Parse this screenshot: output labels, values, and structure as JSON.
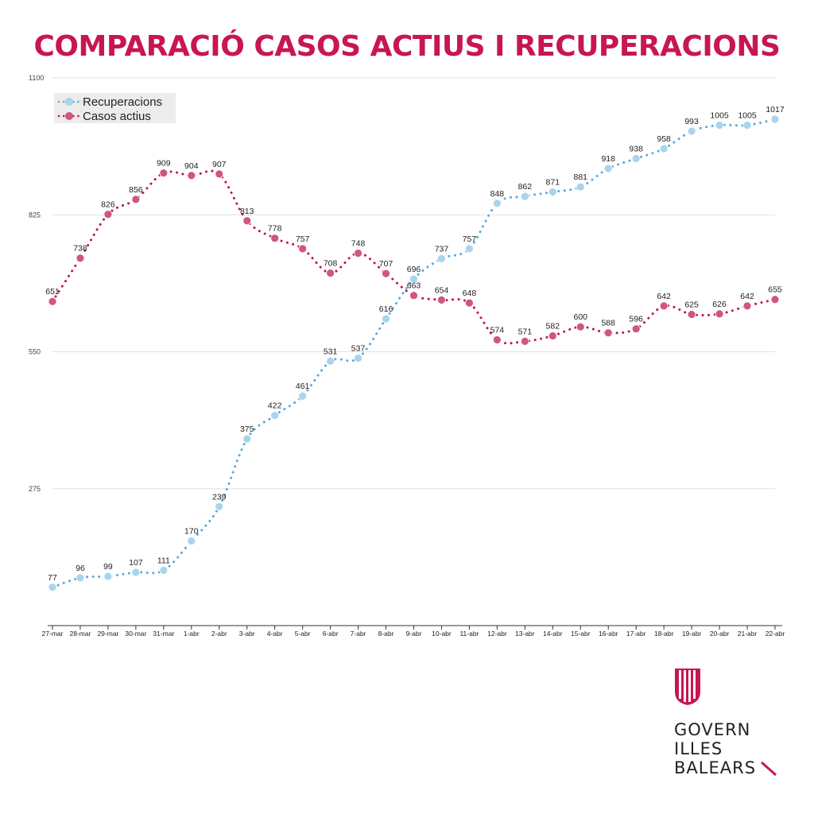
{
  "colors": {
    "title": "#c8164f",
    "recuperacions": "#a9d4ec",
    "recuperacions_line": "#5aa9dd",
    "casos_actius": "#d1567c",
    "casos_actius_line": "#c0144b",
    "grid": "#e2e2e2",
    "axis": "#333333",
    "legend_bg": "#ececec",
    "logo_red": "#c8164f"
  },
  "logo": {
    "line1": "GOVERN",
    "line2": "ILLES",
    "line3": "BALEARS"
  },
  "chart_data": {
    "type": "line",
    "title": "COMPARACIÓ CASOS ACTIUS I RECUPERACIONS",
    "xlabel": "",
    "ylabel": "",
    "ylim": [
      0,
      1100
    ],
    "yticks": [
      275,
      550,
      825,
      1100
    ],
    "legend_position": "top-left",
    "categories": [
      "27-mar",
      "28-mar",
      "29-mar",
      "30-mar",
      "31-mar",
      "1-abr",
      "2-abr",
      "3-abr",
      "4-abr",
      "5-abr",
      "6-abr",
      "7-abr",
      "8-abr",
      "9-abr",
      "10-abr",
      "11-abr",
      "12-abr",
      "13-abr",
      "14-abr",
      "15-abr",
      "16-abr",
      "17-abr",
      "18-abr",
      "19-abr",
      "20-abr",
      "21-abr",
      "22-abr"
    ],
    "series": [
      {
        "name": "Recuperacions",
        "key": "recuperacions",
        "values": [
          77,
          96,
          99,
          107,
          111,
          170,
          239,
          375,
          422,
          461,
          531,
          537,
          616,
          696,
          737,
          757,
          848,
          862,
          871,
          881,
          918,
          938,
          958,
          993,
          1005,
          1005,
          1017
        ]
      },
      {
        "name": "Casos actius",
        "key": "casos_actius",
        "values": [
          651,
          738,
          826,
          856,
          909,
          904,
          907,
          813,
          778,
          757,
          708,
          748,
          707,
          663,
          654,
          648,
          574,
          571,
          582,
          600,
          588,
          596,
          642,
          625,
          626,
          642,
          655
        ]
      }
    ]
  }
}
